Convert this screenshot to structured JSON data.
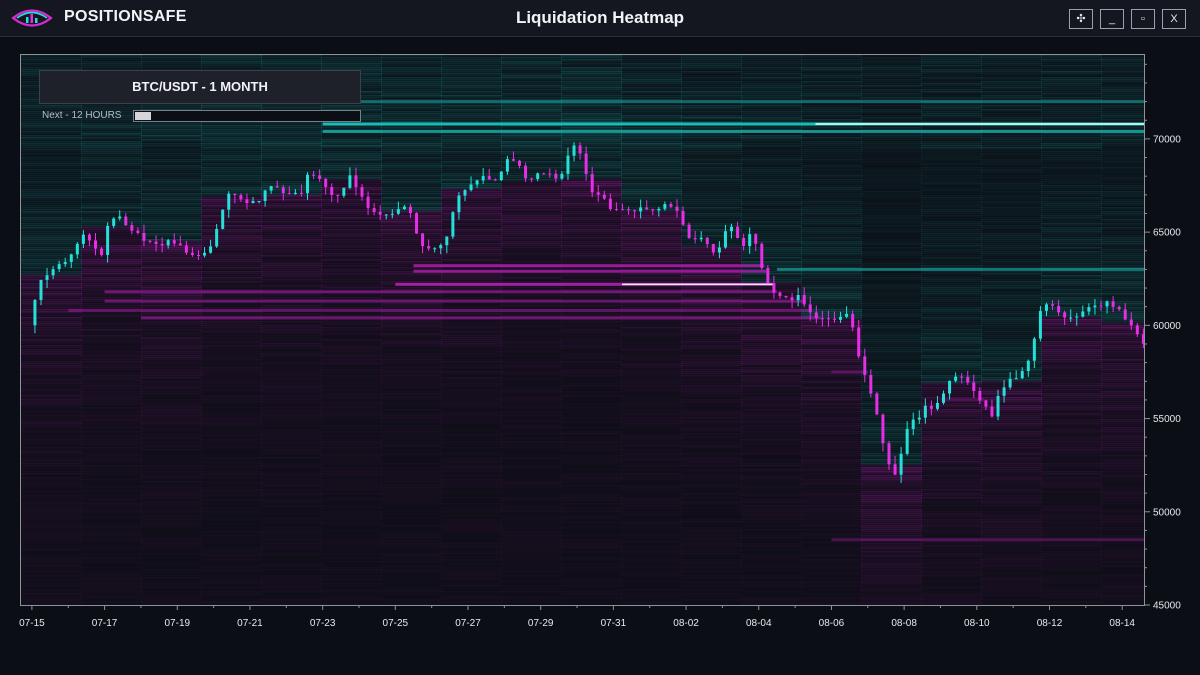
{
  "app": {
    "brand": "POSITIONSAFE",
    "title": "Liquidation Heatmap",
    "window_buttons": [
      "✣",
      "_",
      "▫",
      "X"
    ]
  },
  "overlay": {
    "pair_label": "BTC/USDT - 1 MONTH",
    "next_label": "Next - 12 HOURS",
    "progress_fraction": 0.07
  },
  "colors": {
    "background": "#0c0e15",
    "bull": "#25e0d8",
    "bear": "#e62ee6",
    "heat_above": "#19c4bd",
    "heat_below": "#b51fb5",
    "hot": "#ffffff"
  },
  "chart_data": {
    "type": "heatmap",
    "overlay_type": "candlestick",
    "title": "Liquidation Heatmap",
    "x_ticks": [
      "07-15",
      "07-17",
      "07-19",
      "07-21",
      "07-23",
      "07-25",
      "07-27",
      "07-29",
      "07-31",
      "08-02",
      "08-04",
      "08-06",
      "08-08",
      "08-10",
      "08-12",
      "08-14"
    ],
    "y_ticks": [
      45000,
      50000,
      55000,
      60000,
      65000,
      70000
    ],
    "ylim": [
      45000,
      74500
    ],
    "x_range_days": [
      -0.3,
      30.6
    ],
    "price_anchors": [
      [
        0.0,
        60000
      ],
      [
        0.15,
        61200
      ],
      [
        0.3,
        62500
      ],
      [
        0.7,
        63000
      ],
      [
        1.0,
        63400
      ],
      [
        1.2,
        63800
      ],
      [
        1.5,
        64800
      ],
      [
        1.7,
        64500
      ],
      [
        2.0,
        63800
      ],
      [
        2.2,
        65500
      ],
      [
        2.5,
        65900
      ],
      [
        2.7,
        65400
      ],
      [
        3.0,
        64900
      ],
      [
        3.3,
        64400
      ],
      [
        3.6,
        64300
      ],
      [
        3.9,
        64600
      ],
      [
        4.1,
        64300
      ],
      [
        4.4,
        63700
      ],
      [
        4.8,
        63900
      ],
      [
        5.0,
        64200
      ],
      [
        5.2,
        65500
      ],
      [
        5.5,
        67000
      ],
      [
        5.8,
        66800
      ],
      [
        6.0,
        66600
      ],
      [
        6.3,
        66600
      ],
      [
        6.6,
        67500
      ],
      [
        6.9,
        67300
      ],
      [
        7.2,
        66900
      ],
      [
        7.5,
        67200
      ],
      [
        7.7,
        68200
      ],
      [
        8.0,
        67800
      ],
      [
        8.3,
        66900
      ],
      [
        8.6,
        67000
      ],
      [
        8.8,
        68000
      ],
      [
        9.1,
        67300
      ],
      [
        9.3,
        66400
      ],
      [
        9.6,
        66100
      ],
      [
        9.9,
        65900
      ],
      [
        10.1,
        66000
      ],
      [
        10.3,
        66500
      ],
      [
        10.5,
        66100
      ],
      [
        10.7,
        64700
      ],
      [
        10.9,
        64000
      ],
      [
        11.1,
        64200
      ],
      [
        11.3,
        64200
      ],
      [
        11.5,
        64800
      ],
      [
        11.7,
        66200
      ],
      [
        11.9,
        67200
      ],
      [
        12.2,
        67500
      ],
      [
        12.5,
        67900
      ],
      [
        12.8,
        67700
      ],
      [
        13.0,
        68200
      ],
      [
        13.2,
        69200
      ],
      [
        13.4,
        68800
      ],
      [
        13.7,
        67700
      ],
      [
        14.0,
        68100
      ],
      [
        14.3,
        68100
      ],
      [
        14.6,
        67800
      ],
      [
        14.9,
        69500
      ],
      [
        15.1,
        69600
      ],
      [
        15.3,
        68400
      ],
      [
        15.5,
        67100
      ],
      [
        15.8,
        66800
      ],
      [
        16.0,
        66300
      ],
      [
        16.2,
        66300
      ],
      [
        16.5,
        66200
      ],
      [
        16.8,
        66200
      ],
      [
        17.1,
        66200
      ],
      [
        17.3,
        66200
      ],
      [
        17.5,
        66500
      ],
      [
        17.7,
        66200
      ],
      [
        17.9,
        66000
      ],
      [
        18.1,
        64900
      ],
      [
        18.3,
        64500
      ],
      [
        18.5,
        64600
      ],
      [
        18.7,
        64200
      ],
      [
        18.9,
        63800
      ],
      [
        19.1,
        64800
      ],
      [
        19.3,
        65300
      ],
      [
        19.5,
        64800
      ],
      [
        19.7,
        64000
      ],
      [
        19.9,
        65200
      ],
      [
        20.1,
        63300
      ],
      [
        20.3,
        62500
      ],
      [
        20.5,
        61800
      ],
      [
        20.8,
        61500
      ],
      [
        21.0,
        61400
      ],
      [
        21.2,
        61800
      ],
      [
        21.4,
        60700
      ],
      [
        21.6,
        60500
      ],
      [
        21.8,
        60300
      ],
      [
        22.0,
        60400
      ],
      [
        22.2,
        60200
      ],
      [
        22.4,
        60600
      ],
      [
        22.6,
        60700
      ],
      [
        22.8,
        58600
      ],
      [
        23.0,
        57300
      ],
      [
        23.2,
        56300
      ],
      [
        23.4,
        54500
      ],
      [
        23.6,
        52800
      ],
      [
        23.8,
        51800
      ],
      [
        24.0,
        53200
      ],
      [
        24.2,
        54600
      ],
      [
        24.5,
        55100
      ],
      [
        24.7,
        55900
      ],
      [
        24.9,
        55500
      ],
      [
        25.1,
        56200
      ],
      [
        25.3,
        57000
      ],
      [
        25.6,
        57300
      ],
      [
        25.9,
        56700
      ],
      [
        26.1,
        56300
      ],
      [
        26.3,
        55600
      ],
      [
        26.5,
        55100
      ],
      [
        26.7,
        56300
      ],
      [
        26.9,
        57000
      ],
      [
        27.2,
        57200
      ],
      [
        27.4,
        57600
      ],
      [
        27.6,
        58600
      ],
      [
        27.8,
        60600
      ],
      [
        28.0,
        61200
      ],
      [
        28.2,
        60900
      ],
      [
        28.5,
        60500
      ],
      [
        28.8,
        60500
      ],
      [
        29.0,
        60800
      ],
      [
        29.3,
        61000
      ],
      [
        29.6,
        61200
      ],
      [
        29.8,
        61100
      ],
      [
        30.0,
        60900
      ],
      [
        30.2,
        60300
      ],
      [
        30.4,
        59800
      ],
      [
        30.6,
        59100
      ]
    ],
    "bands": [
      {
        "price": 70800,
        "strength": 0.95,
        "side": "above",
        "from_day": 8.0
      },
      {
        "price": 70400,
        "strength": 0.7,
        "side": "above",
        "from_day": 8.0
      },
      {
        "price": 72000,
        "strength": 0.45,
        "side": "above",
        "from_day": 5.0
      },
      {
        "price": 63000,
        "strength": 0.55,
        "side": "above",
        "from_day": 20.5
      },
      {
        "price": 63200,
        "strength": 0.8,
        "side": "below",
        "from_day": 10.5
      },
      {
        "price": 62900,
        "strength": 0.75,
        "side": "below",
        "from_day": 10.5
      },
      {
        "price": 62200,
        "strength": 0.9,
        "side": "below",
        "from_day": 10.0
      },
      {
        "price": 61800,
        "strength": 0.55,
        "side": "below",
        "from_day": 2.0
      },
      {
        "price": 61300,
        "strength": 0.5,
        "side": "below",
        "from_day": 2.0
      },
      {
        "price": 60800,
        "strength": 0.45,
        "side": "below",
        "from_day": 1.0
      },
      {
        "price": 60400,
        "strength": 0.55,
        "side": "below",
        "from_day": 3.0
      },
      {
        "price": 57500,
        "strength": 0.35,
        "side": "below",
        "from_day": 22.0
      },
      {
        "price": 56000,
        "strength": 0.3,
        "side": "below",
        "from_day": 25.0
      },
      {
        "price": 48500,
        "strength": 0.35,
        "side": "below",
        "from_day": 22.0
      }
    ]
  }
}
